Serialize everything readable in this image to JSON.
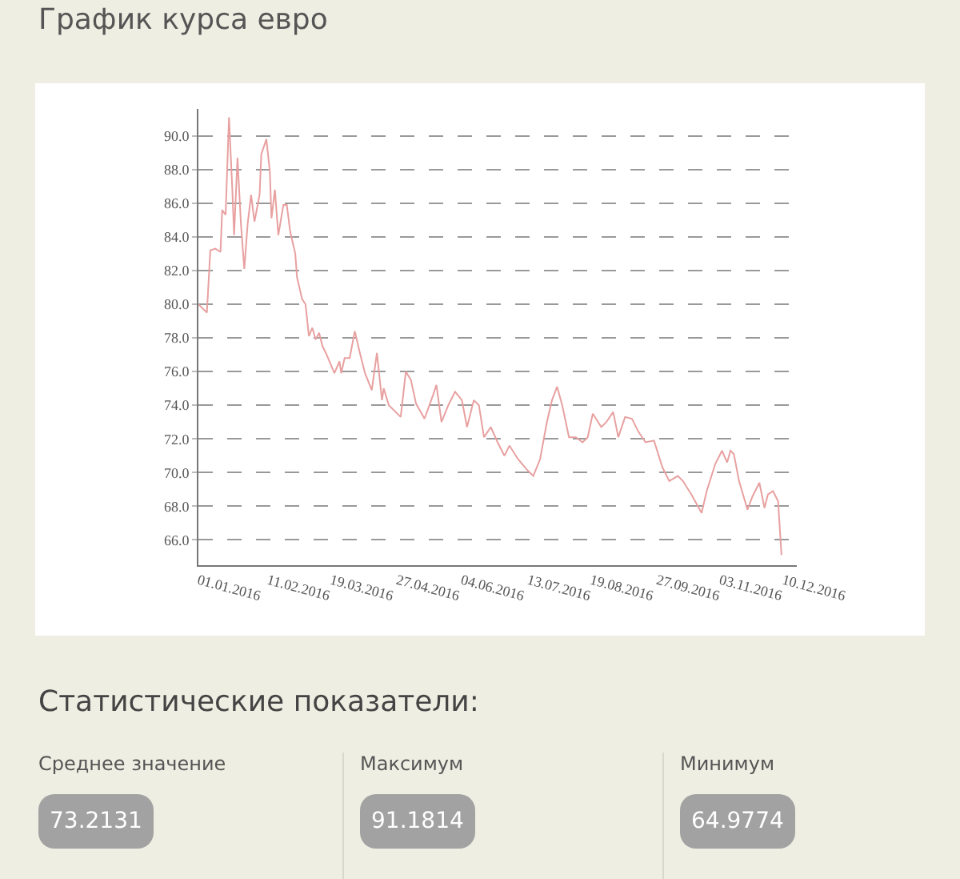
{
  "chart_data": [
    {
      "type": "line",
      "title": "График курса евро",
      "color": "#e8a0a0",
      "grid": "y",
      "line_style": "solid",
      "x": [
        "2016-01-01",
        "2016-01-06",
        "2016-01-08",
        "2016-01-11",
        "2016-01-14",
        "2016-01-15",
        "2016-01-17",
        "2016-01-19",
        "2016-01-21",
        "2016-01-22",
        "2016-01-24",
        "2016-01-26",
        "2016-01-28",
        "2016-01-30",
        "2016-02-01",
        "2016-02-03",
        "2016-02-06",
        "2016-02-07",
        "2016-02-10",
        "2016-02-12",
        "2016-02-13",
        "2016-02-15",
        "2016-02-17",
        "2016-02-20",
        "2016-02-22",
        "2016-02-24",
        "2016-02-27",
        "2016-02-28",
        "2016-03-02",
        "2016-03-04",
        "2016-03-06",
        "2016-03-08",
        "2016-03-10",
        "2016-03-12",
        "2016-03-14",
        "2016-03-16",
        "2016-03-21",
        "2016-03-24",
        "2016-03-25",
        "2016-03-27",
        "2016-03-30",
        "2016-04-02",
        "2016-04-05",
        "2016-04-08",
        "2016-04-12",
        "2016-04-15",
        "2016-04-18",
        "2016-04-19",
        "2016-04-22",
        "2016-04-29",
        "2016-05-02",
        "2016-05-05",
        "2016-05-08",
        "2016-05-13",
        "2016-05-18",
        "2016-05-20",
        "2016-05-23",
        "2016-05-27",
        "2016-05-31",
        "2016-06-04",
        "2016-06-07",
        "2016-06-11",
        "2016-06-14",
        "2016-06-17",
        "2016-06-21",
        "2016-06-25",
        "2016-06-29",
        "2016-07-02",
        "2016-07-07",
        "2016-07-12",
        "2016-07-16",
        "2016-07-20",
        "2016-07-24",
        "2016-07-27",
        "2016-07-30",
        "2016-08-02",
        "2016-08-06",
        "2016-08-10",
        "2016-08-14",
        "2016-08-17",
        "2016-08-20",
        "2016-08-25",
        "2016-08-28",
        "2016-09-01",
        "2016-09-04",
        "2016-09-08",
        "2016-09-12",
        "2016-09-16",
        "2016-09-20",
        "2016-09-25",
        "2016-09-30",
        "2016-10-04",
        "2016-10-09",
        "2016-10-12",
        "2016-10-17",
        "2016-10-23",
        "2016-10-26",
        "2016-10-31",
        "2016-11-04",
        "2016-11-07",
        "2016-11-09",
        "2016-11-11",
        "2016-11-14",
        "2016-11-19",
        "2016-11-22",
        "2016-11-26",
        "2016-11-29",
        "2016-12-01",
        "2016-12-04",
        "2016-12-07",
        "2016-12-09"
      ],
      "values": [
        80.0,
        79.5,
        83.2,
        83.3,
        83.1,
        85.6,
        85.3,
        91.1,
        86.7,
        84.1,
        88.7,
        84.8,
        82.1,
        84.8,
        86.5,
        84.9,
        86.5,
        88.9,
        89.8,
        87.9,
        85.1,
        86.8,
        84.1,
        85.9,
        85.9,
        84.3,
        83.0,
        81.6,
        80.3,
        80.0,
        78.1,
        78.6,
        77.9,
        78.3,
        77.5,
        77.1,
        75.9,
        76.6,
        75.9,
        76.8,
        76.8,
        78.4,
        77.1,
        75.9,
        74.9,
        77.1,
        74.3,
        75.0,
        74.0,
        73.3,
        76.0,
        75.5,
        74.1,
        73.2,
        74.6,
        75.2,
        73.0,
        74.0,
        74.8,
        74.3,
        72.7,
        74.3,
        74.0,
        72.1,
        72.7,
        71.8,
        71.0,
        71.6,
        70.8,
        70.2,
        69.8,
        70.8,
        73.0,
        74.3,
        75.1,
        74.0,
        72.1,
        72.1,
        71.8,
        72.1,
        73.5,
        72.7,
        73.0,
        73.6,
        72.1,
        73.3,
        73.2,
        72.4,
        71.8,
        71.9,
        70.3,
        69.5,
        69.8,
        69.5,
        68.7,
        67.6,
        68.9,
        70.5,
        71.3,
        70.6,
        71.3,
        71.1,
        69.5,
        67.8,
        68.6,
        69.4,
        67.9,
        68.7,
        68.9,
        68.3,
        65.1
      ],
      "xlim": [
        "2016-01-01",
        "2016-12-18"
      ],
      "xticks": [
        {
          "value": "2016-01-01",
          "label": "01.01.2016"
        },
        {
          "value": "2016-02-11",
          "label": "11.02.2016"
        },
        {
          "value": "2016-03-19",
          "label": "19.03.2016"
        },
        {
          "value": "2016-04-27",
          "label": "27.04.2016"
        },
        {
          "value": "2016-06-04",
          "label": "04.06.2016"
        },
        {
          "value": "2016-07-13",
          "label": "13.07.2016"
        },
        {
          "value": "2016-08-19",
          "label": "19.08.2016"
        },
        {
          "value": "2016-09-27",
          "label": "27.09.2016"
        },
        {
          "value": "2016-11-03",
          "label": "03.11.2016"
        },
        {
          "value": "2016-12-10",
          "label": "10.12.2016"
        }
      ],
      "ylim": [
        64.5,
        91.6
      ],
      "yticks": [
        {
          "value": 66,
          "label": "66.0"
        },
        {
          "value": 68,
          "label": "68.0"
        },
        {
          "value": 70,
          "label": "70.0"
        },
        {
          "value": 72,
          "label": "72.0"
        },
        {
          "value": 74,
          "label": "74.0"
        },
        {
          "value": 76,
          "label": "76.0"
        },
        {
          "value": 78,
          "label": "78.0"
        },
        {
          "value": 80,
          "label": "80.0"
        },
        {
          "value": 82,
          "label": "82.0"
        },
        {
          "value": 84,
          "label": "84.0"
        },
        {
          "value": 86,
          "label": "86.0"
        },
        {
          "value": 88,
          "label": "88.0"
        },
        {
          "value": 90,
          "label": "90.0"
        }
      ]
    },
    {
      "type": "other",
      "title": "Статистические показатели:",
      "annotations": [
        "Среднее значение",
        "73.2131",
        "Максимум",
        "91.1814",
        "Минимум",
        "64.9774"
      ]
    }
  ]
}
